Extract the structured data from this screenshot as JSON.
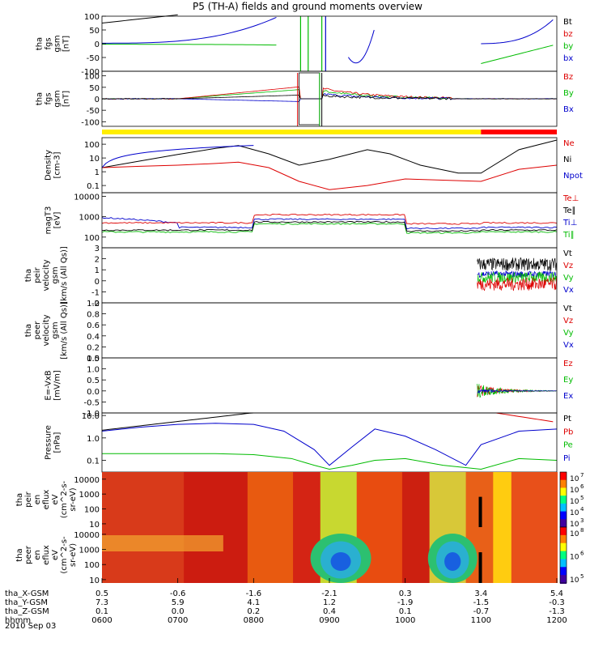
{
  "title": "P5 (TH-A) fields and ground moments overview",
  "date_label": "2010 Sep 03",
  "chart_data": {
    "type": "line",
    "x_axis": {
      "rows": [
        {
          "label": "tha_X-GSM",
          "values": [
            "0.5",
            "-0.6",
            "-1.6",
            "-2.1",
            "0.3",
            "3.4",
            "5.4"
          ]
        },
        {
          "label": "tha_Y-GSM",
          "values": [
            "7.3",
            "5.9",
            "4.1",
            "1.2",
            "-1.9",
            "-1.5",
            "-0.3"
          ]
        },
        {
          "label": "tha_Z-GSM",
          "values": [
            "0.1",
            "0.0",
            "0.2",
            "0.4",
            "0.1",
            "-0.7",
            "-1.3"
          ]
        },
        {
          "label": "hhmm",
          "values": [
            "0600",
            "0700",
            "0800",
            "0900",
            "1000",
            "1100",
            "1200"
          ]
        }
      ]
    },
    "panels": [
      {
        "id": "fgs",
        "ylabel": [
          "tha",
          "fgs",
          "gsm",
          "[nT]"
        ],
        "scale": "linear",
        "ylim": [
          -100,
          100
        ],
        "ticks": [
          "100",
          "50",
          "0",
          "-50",
          "-100"
        ],
        "legend": [
          {
            "name": "Bt",
            "color": "#000000"
          },
          {
            "name": "bz",
            "color": "#dd0000"
          },
          {
            "name": "by",
            "color": "#00bb00"
          },
          {
            "name": "bx",
            "color": "#0000cc"
          }
        ]
      },
      {
        "id": "fgs_full",
        "ylabel": [
          "tha",
          "fgs",
          "gsm",
          "[nT]"
        ],
        "scale": "linear",
        "ylim": [
          -120,
          120
        ],
        "ticks": [
          "100",
          "50",
          "0",
          "-50",
          "-100"
        ],
        "legend": [
          {
            "name": "Bz",
            "color": "#dd0000"
          },
          {
            "name": "By",
            "color": "#00bb00"
          },
          {
            "name": "Bx",
            "color": "#0000cc"
          }
        ]
      },
      {
        "id": "density",
        "ylabel": [
          "Density",
          "[cm-3]"
        ],
        "scale": "log",
        "ylim": [
          0.03,
          300
        ],
        "ticks": [
          "100",
          "10",
          "1",
          "0.1"
        ],
        "legend": [
          {
            "name": "Ne",
            "color": "#dd0000"
          },
          {
            "name": "Ni",
            "color": "#000000"
          },
          {
            "name": "Npot",
            "color": "#0000cc"
          }
        ]
      },
      {
        "id": "temperature",
        "ylabel": [
          "magT3",
          "[eV]"
        ],
        "scale": "log",
        "ylim": [
          30,
          15000
        ],
        "ticks": [
          "10000",
          "1000",
          "100"
        ],
        "legend": [
          {
            "name": "Te⊥",
            "color": "#dd0000"
          },
          {
            "name": "Te∥",
            "color": "#000000"
          },
          {
            "name": "Ti⊥",
            "color": "#0000cc"
          },
          {
            "name": "Ti∥",
            "color": "#00bb00"
          }
        ]
      },
      {
        "id": "velocity_peir",
        "ylabel": [
          "tha",
          "peir",
          "velocity",
          "gsm",
          "[km/s (All Qs)]"
        ],
        "scale": "linear",
        "ylim": [
          -2,
          3
        ],
        "ticks": [
          "3",
          "2",
          "1",
          "0",
          "-1",
          "-2"
        ],
        "legend": [
          {
            "name": "Vt",
            "color": "#000000"
          },
          {
            "name": "Vz",
            "color": "#dd0000"
          },
          {
            "name": "Vy",
            "color": "#00bb00"
          },
          {
            "name": "Vx",
            "color": "#0000cc"
          }
        ]
      },
      {
        "id": "velocity_peer",
        "ylabel": [
          "tha",
          "peer",
          "velocity",
          "gsm",
          "[km/s (All Qs)]"
        ],
        "scale": "linear",
        "ylim": [
          0,
          1
        ],
        "ticks": [
          "1.0",
          "0.8",
          "0.6",
          "0.4",
          "0.2",
          "0.0"
        ],
        "legend": [
          {
            "name": "Vt",
            "color": "#000000"
          },
          {
            "name": "Vz",
            "color": "#dd0000"
          },
          {
            "name": "Vy",
            "color": "#00bb00"
          },
          {
            "name": "Vx",
            "color": "#0000cc"
          }
        ]
      },
      {
        "id": "efield",
        "ylabel": [
          "E=-VxB",
          "[mV/m]"
        ],
        "scale": "linear",
        "ylim": [
          -1,
          1.5
        ],
        "ticks": [
          "1.5",
          "1.0",
          "0.5",
          "0.0",
          "-0.5",
          "-1.0"
        ],
        "legend": [
          {
            "name": "Ez",
            "color": "#dd0000"
          },
          {
            "name": "Ey",
            "color": "#00bb00"
          },
          {
            "name": "Ex",
            "color": "#0000cc"
          }
        ]
      },
      {
        "id": "pressure",
        "ylabel": [
          "Pressure",
          "[nPa]"
        ],
        "scale": "log",
        "ylim": [
          0.03,
          13
        ],
        "ticks": [
          "10.0",
          "1.0",
          "0.1"
        ],
        "legend": [
          {
            "name": "Pt",
            "color": "#000000"
          },
          {
            "name": "Pb",
            "color": "#dd0000"
          },
          {
            "name": "Pe",
            "color": "#00bb00"
          },
          {
            "name": "Pi",
            "color": "#0000cc"
          }
        ]
      },
      {
        "id": "peir_eflux",
        "type": "heatmap",
        "ylabel": [
          "tha",
          "peir",
          "en",
          "eflux",
          "eV",
          "(cm^2-s-",
          "sr-eV)"
        ],
        "scale": "log",
        "ylim": [
          6,
          30000
        ],
        "ticks": [
          "10000",
          "1000",
          "100",
          "10"
        ],
        "colorbar": {
          "ticks": [
            "10",
            "10",
            "10",
            "10",
            "10"
          ],
          "exponents": [
            "7",
            "6",
            "5",
            "4",
            "3"
          ]
        }
      },
      {
        "id": "peer_eflux",
        "type": "heatmap",
        "ylabel": [
          "tha",
          "peer",
          "en",
          "eflux",
          "eV",
          "(cm^2-s-",
          "sr-eV)"
        ],
        "scale": "log",
        "ylim": [
          6,
          30000
        ],
        "ticks": [
          "10000",
          "1000",
          "100",
          "10"
        ],
        "colorbar": {
          "ticks": [
            "10",
            "10",
            "10"
          ],
          "exponents": [
            "8",
            "6",
            "5"
          ]
        }
      }
    ],
    "mode_bar": [
      {
        "from": "0600",
        "to": "1100",
        "color": "#ffee00"
      },
      {
        "from": "1100",
        "to": "1200",
        "color": "#ff0000"
      }
    ],
    "series": {
      "fgs_Bt": {
        "x": [
          6.0,
          6.3,
          6.6,
          6.9,
          7.2,
          7.3
        ],
        "y": [
          75,
          82,
          90,
          96,
          100,
          100
        ]
      },
      "fgs_bx": {
        "x": [
          6.0,
          6.5,
          7.0,
          7.5,
          7.8,
          8.0,
          8.15,
          8.25,
          8.35
        ],
        "y": [
          0,
          1,
          3,
          8,
          16,
          30,
          55,
          80,
          100
        ]
      },
      "density_Ni": {
        "x": [
          6.0,
          6.5,
          7.0,
          7.5,
          7.8,
          8.2,
          8.6,
          9.0,
          9.5,
          9.8,
          10.2,
          10.7,
          11.0,
          11.5,
          12.0
        ],
        "y": [
          2,
          6,
          18,
          50,
          80,
          20,
          3,
          8,
          40,
          20,
          3,
          0.8,
          0.8,
          40,
          200
        ]
      },
      "density_Ne": {
        "x": [
          6.0,
          6.5,
          7.0,
          7.5,
          7.8,
          8.2,
          8.6,
          9.0,
          9.5,
          10.0,
          11.0,
          11.5,
          12.0
        ],
        "y": [
          2,
          2.5,
          3,
          4,
          5,
          2,
          0.2,
          0.05,
          0.1,
          0.3,
          0.2,
          1.5,
          3
        ]
      },
      "pressure_Pi": {
        "x": [
          6.0,
          6.5,
          7.0,
          7.5,
          8.0,
          8.4,
          8.8,
          9.0,
          9.3,
          9.6,
          10.0,
          10.4,
          10.8,
          11.0,
          11.5,
          12.0
        ],
        "y": [
          2,
          3,
          4,
          4.5,
          4,
          2,
          0.3,
          0.06,
          0.4,
          2.5,
          1.2,
          0.3,
          0.06,
          0.5,
          2,
          2.5
        ]
      },
      "pressure_Pe": {
        "x": [
          6.0,
          6.5,
          7.0,
          7.5,
          8.0,
          8.5,
          8.8,
          9.0,
          9.3,
          9.6,
          10.0,
          10.5,
          11.0,
          11.5,
          12.0
        ],
        "y": [
          0.2,
          0.2,
          0.2,
          0.2,
          0.18,
          0.12,
          0.06,
          0.04,
          0.06,
          0.1,
          0.12,
          0.06,
          0.04,
          0.12,
          0.1
        ]
      }
    }
  }
}
